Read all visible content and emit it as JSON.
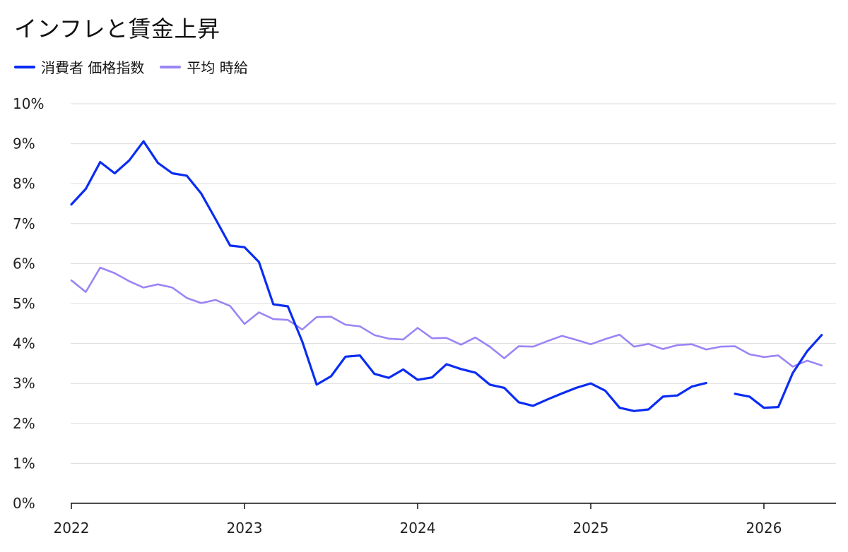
{
  "chart_data": {
    "type": "line",
    "title": "インフレと賃金上昇",
    "xlabel": "",
    "ylabel": "",
    "ylim": [
      0,
      10
    ],
    "xlim": [
      "2022-01",
      "2026-06"
    ],
    "grid": true,
    "legend_position": "top-left",
    "y_ticks": [
      "0%",
      "1%",
      "2%",
      "3%",
      "4%",
      "5%",
      "6%",
      "7%",
      "8%",
      "9%",
      "10%"
    ],
    "x_ticks": [
      {
        "label": "2022",
        "at": "2022-01"
      },
      {
        "label": "2023",
        "at": "2023-01"
      },
      {
        "label": "2024",
        "at": "2024-01"
      },
      {
        "label": "2025",
        "at": "2025-01"
      },
      {
        "label": "2026",
        "at": "2026-01"
      }
    ],
    "series": [
      {
        "name": "消費者 価格指数",
        "color": "#0a2cf2",
        "x": [
          "2022-01",
          "2022-02",
          "2022-03",
          "2022-04",
          "2022-05",
          "2022-06",
          "2022-07",
          "2022-08",
          "2022-09",
          "2022-10",
          "2022-11",
          "2022-12",
          "2023-01",
          "2023-02",
          "2023-03",
          "2023-04",
          "2023-05",
          "2023-06",
          "2023-07",
          "2023-08",
          "2023-09",
          "2023-10",
          "2023-11",
          "2023-12",
          "2024-01",
          "2024-02",
          "2024-03",
          "2024-04",
          "2024-05",
          "2024-06",
          "2024-07",
          "2024-08",
          "2024-09",
          "2024-10",
          "2024-11",
          "2024-12",
          "2025-01",
          "2025-02",
          "2025-03",
          "2025-04",
          "2025-05",
          "2025-06",
          "2025-07",
          "2025-08",
          "2025-09",
          "2025-10",
          "2025-11",
          "2025-12",
          "2026-01",
          "2026-02",
          "2026-03",
          "2026-04",
          "2026-05"
        ],
        "values": [
          7.48,
          7.87,
          8.54,
          8.26,
          8.58,
          9.06,
          8.52,
          8.26,
          8.2,
          7.75,
          7.11,
          6.45,
          6.41,
          6.04,
          4.98,
          4.93,
          4.05,
          2.97,
          3.18,
          3.67,
          3.7,
          3.24,
          3.14,
          3.35,
          3.09,
          3.15,
          3.48,
          3.36,
          3.27,
          2.97,
          2.89,
          2.53,
          2.44,
          2.6,
          2.75,
          2.89,
          3.0,
          2.82,
          2.39,
          2.31,
          2.35,
          2.67,
          2.7,
          2.92,
          3.01,
          null,
          2.74,
          2.67,
          2.39,
          2.41,
          3.26,
          3.81,
          4.21
        ]
      },
      {
        "name": "平均 時給",
        "color": "#9b84f5",
        "x": [
          "2022-01",
          "2022-02",
          "2022-03",
          "2022-04",
          "2022-05",
          "2022-06",
          "2022-07",
          "2022-08",
          "2022-09",
          "2022-10",
          "2022-11",
          "2022-12",
          "2023-01",
          "2023-02",
          "2023-03",
          "2023-04",
          "2023-05",
          "2023-06",
          "2023-07",
          "2023-08",
          "2023-09",
          "2023-10",
          "2023-11",
          "2023-12",
          "2024-01",
          "2024-02",
          "2024-03",
          "2024-04",
          "2024-05",
          "2024-06",
          "2024-07",
          "2024-08",
          "2024-09",
          "2024-10",
          "2024-11",
          "2024-12",
          "2025-01",
          "2025-02",
          "2025-03",
          "2025-04",
          "2025-05",
          "2025-06",
          "2025-07",
          "2025-08",
          "2025-09",
          "2025-10",
          "2025-11",
          "2025-12",
          "2026-01",
          "2026-02",
          "2026-03",
          "2026-04",
          "2026-05"
        ],
        "values": [
          5.58,
          5.29,
          5.9,
          5.76,
          5.56,
          5.4,
          5.48,
          5.4,
          5.14,
          5.01,
          5.09,
          4.94,
          4.49,
          4.78,
          4.61,
          4.59,
          4.35,
          4.66,
          4.67,
          4.47,
          4.43,
          4.21,
          4.12,
          4.1,
          4.39,
          4.13,
          4.14,
          3.97,
          4.15,
          3.92,
          3.63,
          3.93,
          3.92,
          4.06,
          4.19,
          4.09,
          3.98,
          4.11,
          4.22,
          3.92,
          3.99,
          3.86,
          3.96,
          3.98,
          3.85,
          3.92,
          3.93,
          3.73,
          3.66,
          3.7,
          3.42,
          3.57,
          3.45
        ]
      }
    ]
  }
}
